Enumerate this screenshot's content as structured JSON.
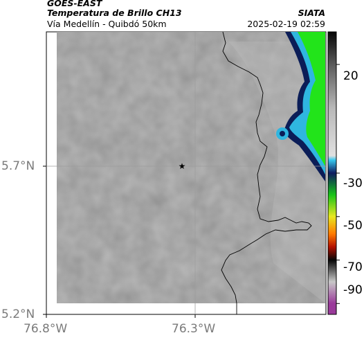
{
  "header": {
    "satellite": "GOES-EAST",
    "product": "Temperatura de Brillo CH13",
    "region": "Vía Medellín - Quibdó 50km",
    "agency": "SIATA",
    "datetime": "2025-02-19 02:59"
  },
  "map": {
    "x_ticks": [
      "76.8°W",
      "76.3°W"
    ],
    "y_ticks": [
      "5.7°N",
      "5.2°N"
    ],
    "marker": "star",
    "gridlines": true,
    "colors": {
      "background": "#8a8a8a",
      "cloud_cold_green": "#22e41a",
      "cloud_navy": "#0b1d57",
      "cloud_cyan": "#2fb6e0",
      "border_line": "#000000",
      "gridline": "#9d9d9d"
    }
  },
  "colorbar": {
    "ticks": [
      "20",
      "-30",
      "-50",
      "-70",
      "-90"
    ],
    "stops": [
      {
        "value": 35,
        "color": "#060606"
      },
      {
        "value": 20,
        "color": "#5a5a5a"
      },
      {
        "value": 0,
        "color": "#b8b8b8"
      },
      {
        "value": -22,
        "color": "#e0e0e0"
      },
      {
        "value": -24,
        "color": "#36c8ee"
      },
      {
        "value": -30,
        "color": "#0d1a5f"
      },
      {
        "value": -40,
        "color": "#18c418"
      },
      {
        "value": -50,
        "color": "#e8e820"
      },
      {
        "value": -58,
        "color": "#ff7a00"
      },
      {
        "value": -64,
        "color": "#b31000"
      },
      {
        "value": -70,
        "color": "#060606"
      },
      {
        "value": -80,
        "color": "#c8c8c8"
      },
      {
        "value": -90,
        "color": "#9a3a9a"
      }
    ]
  }
}
